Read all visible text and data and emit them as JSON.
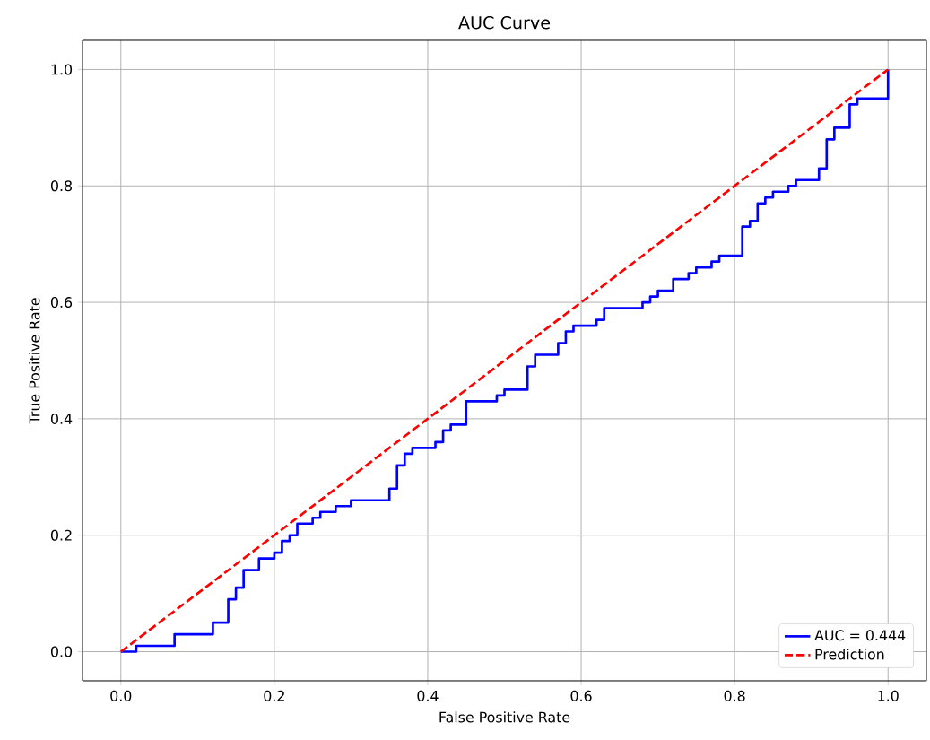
{
  "chart_data": {
    "type": "line",
    "title": "AUC Curve",
    "xlabel": "False Positive Rate",
    "ylabel": "True Positive Rate",
    "xlim": [
      -0.05,
      1.05
    ],
    "ylim": [
      -0.05,
      1.05
    ],
    "xticks": [
      {
        "value": 0,
        "label": "0.0"
      },
      0.2,
      0.4,
      0.6,
      0.8,
      {
        "value": 1,
        "label": "1.0"
      }
    ],
    "yticks": [
      {
        "value": 0,
        "label": "0.0"
      },
      0.2,
      0.4,
      0.6,
      0.8,
      {
        "value": 1,
        "label": "1.0"
      }
    ],
    "grid": true,
    "legend": "bottom right",
    "marker": "none",
    "series": [
      {
        "name": "AUC = 0.444",
        "color": "#0000ff",
        "line_style": "solid",
        "x": [
          0,
          0.02,
          0.02,
          0.07,
          0.07,
          0.12,
          0.12,
          0.14,
          0.14,
          0.15,
          0.15,
          0.16,
          0.16,
          0.18,
          0.18,
          0.2,
          0.2,
          0.21,
          0.21,
          0.22,
          0.22,
          0.23,
          0.23,
          0.25,
          0.25,
          0.26,
          0.26,
          0.28,
          0.28,
          0.3,
          0.3,
          0.35,
          0.35,
          0.36,
          0.36,
          0.37,
          0.37,
          0.38,
          0.38,
          0.41,
          0.41,
          0.42,
          0.42,
          0.43,
          0.43,
          0.45,
          0.45,
          0.49,
          0.49,
          0.5,
          0.5,
          0.53,
          0.53,
          0.54,
          0.54,
          0.57,
          0.57,
          0.58,
          0.58,
          0.59,
          0.59,
          0.62,
          0.62,
          0.63,
          0.63,
          0.68,
          0.68,
          0.69,
          0.69,
          0.7,
          0.7,
          0.72,
          0.72,
          0.74,
          0.74,
          0.75,
          0.75,
          0.77,
          0.77,
          0.78,
          0.78,
          0.81,
          0.81,
          0.82,
          0.82,
          0.83,
          0.83,
          0.84,
          0.84,
          0.85,
          0.85,
          0.87,
          0.87,
          0.88,
          0.88,
          0.91,
          0.91,
          0.92,
          0.92,
          0.93,
          0.93,
          0.95,
          0.95,
          0.96,
          0.96,
          1.0,
          1.0
        ],
        "values": [
          0,
          0,
          0.01,
          0.01,
          0.03,
          0.03,
          0.05,
          0.05,
          0.09,
          0.09,
          0.11,
          0.11,
          0.14,
          0.14,
          0.16,
          0.16,
          0.17,
          0.17,
          0.19,
          0.19,
          0.2,
          0.2,
          0.22,
          0.22,
          0.23,
          0.23,
          0.24,
          0.24,
          0.25,
          0.25,
          0.26,
          0.26,
          0.28,
          0.28,
          0.32,
          0.32,
          0.34,
          0.34,
          0.35,
          0.35,
          0.36,
          0.36,
          0.38,
          0.38,
          0.39,
          0.39,
          0.43,
          0.43,
          0.44,
          0.44,
          0.45,
          0.45,
          0.49,
          0.49,
          0.51,
          0.51,
          0.53,
          0.53,
          0.55,
          0.55,
          0.56,
          0.56,
          0.57,
          0.57,
          0.59,
          0.59,
          0.6,
          0.6,
          0.61,
          0.61,
          0.62,
          0.62,
          0.64,
          0.64,
          0.65,
          0.65,
          0.66,
          0.66,
          0.67,
          0.67,
          0.68,
          0.68,
          0.73,
          0.73,
          0.74,
          0.74,
          0.77,
          0.77,
          0.78,
          0.78,
          0.79,
          0.79,
          0.8,
          0.8,
          0.81,
          0.81,
          0.83,
          0.83,
          0.88,
          0.88,
          0.9,
          0.9,
          0.94,
          0.94,
          0.95,
          0.95,
          1.0
        ]
      },
      {
        "name": "Prediction",
        "color": "#ff0000",
        "line_style": "dashed",
        "x": [
          0,
          1
        ],
        "values": [
          0,
          1
        ]
      }
    ]
  }
}
